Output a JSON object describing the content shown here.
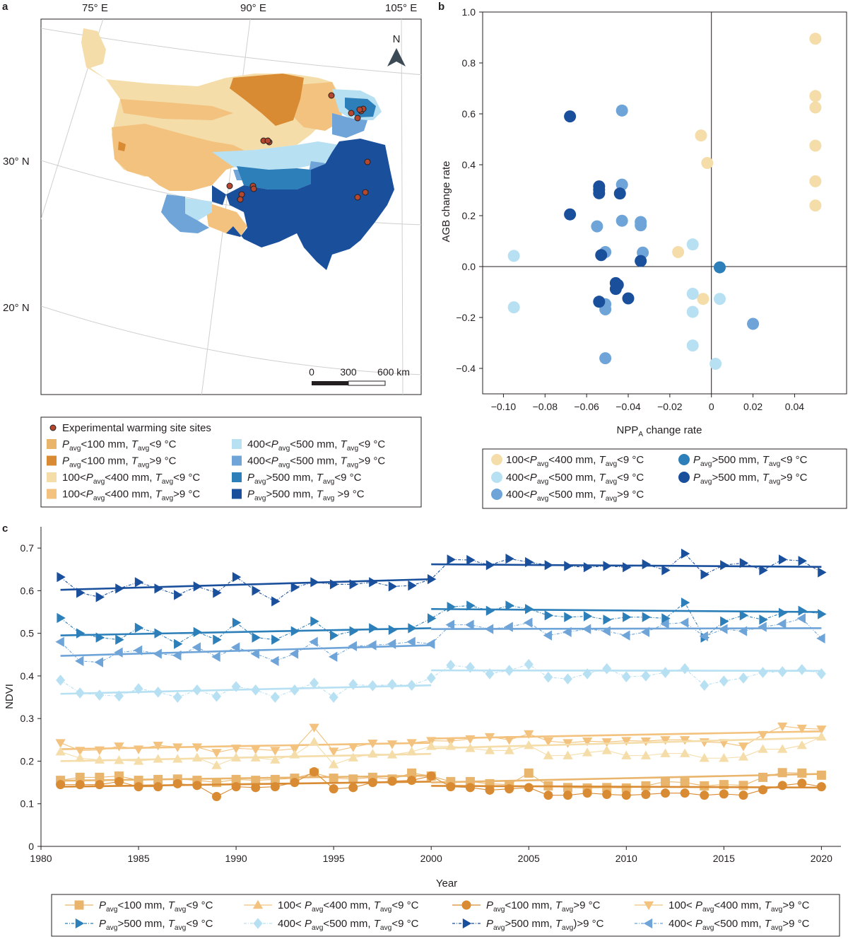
{
  "panel_labels": {
    "a": "a",
    "b": "b",
    "c": "c"
  },
  "colors": {
    "c1": "#e9b56d",
    "c2": "#d98b33",
    "c3": "#f5ddaa",
    "c4": "#f2c27e",
    "c5": "#b7e0f3",
    "c6": "#6ea4d8",
    "c7": "#2c7fb8",
    "c8": "#1a4f9c",
    "site": "#b5472f"
  },
  "map": {
    "lon_labels": [
      "75° E",
      "90° E",
      "105° E"
    ],
    "lat_labels": [
      "30° N",
      "20° N"
    ],
    "north_label": "N",
    "scale": {
      "t0": "0",
      "t1": "300",
      "t2": "600 km"
    }
  },
  "legend_a": {
    "site_label": "Experimental warming site sites",
    "items": [
      {
        "key": "c1",
        "pre": "",
        "mid": "<100 mm,",
        "rel": "<9 °C"
      },
      {
        "key": "c2",
        "pre": "",
        "mid": "<100 mm,",
        "rel": ">9 °C"
      },
      {
        "key": "c3",
        "pre": "100<",
        "mid": "<400 mm,",
        "rel": "<9 °C"
      },
      {
        "key": "c4",
        "pre": "100<",
        "mid": "<400 mm,",
        "rel": ">9 °C"
      },
      {
        "key": "c5",
        "pre": "400<",
        "mid": "<500 mm,",
        "rel": "<9 °C"
      },
      {
        "key": "c6",
        "pre": "400<",
        "mid": "<500 mm,",
        "rel": ">9 °C"
      },
      {
        "key": "c7",
        "pre": "",
        "mid": ">500 mm,",
        "rel": "<9 °C"
      },
      {
        "key": "c8",
        "pre": "",
        "mid": ">500 mm,",
        "rel": " >9 °C"
      }
    ]
  },
  "legend_b": {
    "items": [
      {
        "key": "c3",
        "pre": "100<",
        "mid": "<400 mm,",
        "rel": "<9 °C"
      },
      {
        "key": "c5",
        "pre": "400<",
        "mid": "<500 mm,",
        "rel": "<9 °C"
      },
      {
        "key": "c6",
        "pre": "400<",
        "mid": "<500 mm,",
        "rel": ">9 °C"
      },
      {
        "key": "c7",
        "pre": "",
        "mid": ">500 mm,",
        "rel": "<9 °C"
      },
      {
        "key": "c8",
        "pre": "",
        "mid": ">500 mm,",
        "rel": ">9 °C"
      }
    ]
  },
  "legend_c": {
    "items": [
      {
        "key": "c1",
        "marker": "square",
        "pre": "",
        "mid": "<100 mm,",
        "rel": "<9 °C"
      },
      {
        "key": "c4",
        "marker": "tri-up",
        "pre": "100< ",
        "mid": "<400 mm,",
        "rel": "<9 °C"
      },
      {
        "key": "c2",
        "marker": "circle",
        "pre": "",
        "mid": "<100 mm,",
        "rel": ">9 °C"
      },
      {
        "key": "c4",
        "marker": "tri-down",
        "pre": "100< ",
        "mid": "<400 mm,",
        "rel": ">9 °C"
      },
      {
        "key": "c7",
        "marker": "tri-right",
        "pre": "",
        "mid": ">500 mm,",
        "rel": "<9 °C"
      },
      {
        "key": "c5",
        "marker": "diamond",
        "pre": "400< ",
        "mid": "<500 mm,",
        "rel": "<9 °C"
      },
      {
        "key": "c8",
        "marker": "tri-right",
        "pre": "",
        "mid": ">500 mm,",
        "rel": ")>9 °C"
      },
      {
        "key": "c6",
        "marker": "tri-left",
        "pre": "400< ",
        "mid": "<500 mm,",
        "rel": ">9 °C"
      }
    ]
  },
  "chart_data": [
    {
      "type": "scatter",
      "panel": "b",
      "xlabel": "NPP",
      "xlabel_sub": "A",
      "xlabel_rest": " change rate",
      "ylabel": "AGB change rate",
      "xlim": [
        -0.11,
        0.065
      ],
      "ylim": [
        -0.5,
        1.0
      ],
      "xticks": [
        -0.1,
        -0.08,
        -0.06,
        -0.04,
        -0.02,
        0,
        0.02,
        0.04
      ],
      "xtick_labels": [
        "−0.10",
        "−0.08",
        "−0.06",
        "−0.04",
        "−0.02",
        "0",
        "0.02",
        "0.04"
      ],
      "yticks": [
        -0.4,
        -0.2,
        0.0,
        0.2,
        0.4,
        0.6,
        0.8,
        1.0
      ],
      "ytick_labels": [
        "−0.4",
        "−0.2",
        "0.0",
        "0.2",
        "0.4",
        "0.6",
        "0.8",
        "1.0"
      ],
      "series": [
        {
          "key": "c3",
          "points": [
            [
              0.05,
              0.895
            ],
            [
              0.05,
              0.67
            ],
            [
              0.05,
              0.625
            ],
            [
              0.05,
              0.475
            ],
            [
              0.05,
              0.335
            ],
            [
              0.05,
              0.24
            ],
            [
              -0.005,
              0.515
            ],
            [
              -0.002,
              0.407
            ],
            [
              -0.016,
              0.057
            ],
            [
              -0.004,
              -0.127
            ]
          ]
        },
        {
          "key": "c5",
          "points": [
            [
              -0.095,
              0.042
            ],
            [
              -0.095,
              -0.16
            ],
            [
              -0.009,
              0.087
            ],
            [
              -0.009,
              -0.107
            ],
            [
              -0.009,
              -0.178
            ],
            [
              -0.009,
              -0.31
            ],
            [
              0.004,
              -0.127
            ],
            [
              0.002,
              -0.382
            ]
          ]
        },
        {
          "key": "c6",
          "points": [
            [
              -0.043,
              0.613
            ],
            [
              -0.043,
              0.322
            ],
            [
              -0.043,
              0.18
            ],
            [
              -0.034,
              0.175
            ],
            [
              -0.034,
              0.162
            ],
            [
              -0.055,
              0.158
            ],
            [
              -0.051,
              0.057
            ],
            [
              -0.033,
              0.055
            ],
            [
              -0.051,
              -0.148
            ],
            [
              -0.051,
              -0.168
            ],
            [
              -0.051,
              -0.36
            ],
            [
              0.02,
              -0.225
            ]
          ]
        },
        {
          "key": "c7",
          "points": [
            [
              0.004,
              -0.003
            ]
          ]
        },
        {
          "key": "c8",
          "points": [
            [
              -0.068,
              0.59
            ],
            [
              -0.054,
              0.315
            ],
            [
              -0.054,
              0.302
            ],
            [
              -0.054,
              0.288
            ],
            [
              -0.044,
              0.287
            ],
            [
              -0.068,
              0.205
            ],
            [
              -0.053,
              0.045
            ],
            [
              -0.034,
              0.022
            ],
            [
              -0.046,
              -0.065
            ],
            [
              -0.045,
              -0.072
            ],
            [
              -0.046,
              -0.088
            ],
            [
              -0.04,
              -0.125
            ],
            [
              -0.054,
              -0.138
            ]
          ]
        }
      ]
    },
    {
      "type": "line",
      "panel": "c",
      "xlabel": "Year",
      "ylabel": "NDVI",
      "xlim": [
        1980,
        2021
      ],
      "ylim": [
        0,
        0.75
      ],
      "xticks": [
        1980,
        1985,
        1990,
        1995,
        2000,
        2005,
        2010,
        2015,
        2020
      ],
      "yticks": [
        0,
        0.1,
        0.2,
        0.3,
        0.4,
        0.5,
        0.6,
        0.7
      ],
      "ytick_labels": [
        "0",
        "0.1",
        "0.2",
        "0.3",
        "0.4",
        "0.5",
        "0.6",
        "0.7"
      ],
      "x": [
        1981,
        1982,
        1983,
        1984,
        1985,
        1986,
        1987,
        1988,
        1989,
        1990,
        1991,
        1992,
        1993,
        1994,
        1995,
        1996,
        1997,
        1998,
        1999,
        2000,
        2001,
        2002,
        2003,
        2004,
        2005,
        2006,
        2007,
        2008,
        2009,
        2010,
        2011,
        2012,
        2013,
        2014,
        2015,
        2016,
        2017,
        2018,
        2019,
        2020
      ],
      "series": [
        {
          "key": "c8",
          "marker": "tri-right",
          "dashed": true,
          "values": [
            0.632,
            0.595,
            0.585,
            0.605,
            0.62,
            0.605,
            0.59,
            0.61,
            0.595,
            0.632,
            0.6,
            0.575,
            0.608,
            0.62,
            0.615,
            0.615,
            0.62,
            0.61,
            0.612,
            0.627,
            0.673,
            0.672,
            0.66,
            0.675,
            0.667,
            0.66,
            0.658,
            0.655,
            0.658,
            0.655,
            0.662,
            0.648,
            0.687,
            0.638,
            0.66,
            0.665,
            0.648,
            0.673,
            0.67,
            0.643
          ],
          "trend1": [
            0.602,
            0.627
          ],
          "trend2": [
            0.662,
            0.656
          ]
        },
        {
          "key": "c7",
          "marker": "tri-right",
          "dashed": true,
          "values": [
            0.536,
            0.5,
            0.49,
            0.485,
            0.513,
            0.5,
            0.475,
            0.503,
            0.485,
            0.525,
            0.49,
            0.485,
            0.505,
            0.528,
            0.495,
            0.505,
            0.512,
            0.508,
            0.512,
            0.535,
            0.562,
            0.565,
            0.553,
            0.565,
            0.557,
            0.542,
            0.538,
            0.54,
            0.532,
            0.538,
            0.538,
            0.535,
            0.572,
            0.49,
            0.528,
            0.542,
            0.532,
            0.548,
            0.553,
            0.545
          ],
          "trend1": [
            0.495,
            0.512
          ],
          "trend2": [
            0.557,
            0.55
          ]
        },
        {
          "key": "c6",
          "marker": "tri-left",
          "dashed": true,
          "values": [
            0.48,
            0.435,
            0.432,
            0.455,
            0.46,
            0.452,
            0.448,
            0.467,
            0.445,
            0.467,
            0.452,
            0.435,
            0.452,
            0.48,
            0.445,
            0.47,
            0.472,
            0.475,
            0.48,
            0.475,
            0.52,
            0.52,
            0.51,
            0.515,
            0.525,
            0.495,
            0.503,
            0.51,
            0.505,
            0.495,
            0.503,
            0.522,
            0.525,
            0.493,
            0.51,
            0.505,
            0.515,
            0.522,
            0.535,
            0.488
          ],
          "trend1": [
            0.447,
            0.472
          ],
          "trend2": [
            0.51,
            0.512
          ]
        },
        {
          "key": "c5",
          "marker": "diamond",
          "dashed": true,
          "values": [
            0.39,
            0.36,
            0.355,
            0.353,
            0.37,
            0.362,
            0.35,
            0.367,
            0.352,
            0.375,
            0.367,
            0.35,
            0.367,
            0.383,
            0.35,
            0.38,
            0.377,
            0.38,
            0.378,
            0.395,
            0.425,
            0.42,
            0.405,
            0.413,
            0.427,
            0.397,
            0.393,
            0.405,
            0.417,
            0.398,
            0.4,
            0.408,
            0.417,
            0.378,
            0.388,
            0.395,
            0.408,
            0.41,
            0.415,
            0.405
          ],
          "trend1": [
            0.358,
            0.378
          ],
          "trend2": [
            0.413,
            0.412
          ]
        },
        {
          "key": "c4",
          "marker": "tri-down",
          "dashed": false,
          "values": [
            0.243,
            0.225,
            0.226,
            0.235,
            0.228,
            0.237,
            0.233,
            0.233,
            0.22,
            0.23,
            0.228,
            0.225,
            0.229,
            0.279,
            0.223,
            0.233,
            0.242,
            0.24,
            0.243,
            0.248,
            0.247,
            0.252,
            0.257,
            0.25,
            0.264,
            0.247,
            0.243,
            0.247,
            0.245,
            0.248,
            0.247,
            0.25,
            0.25,
            0.245,
            0.243,
            0.235,
            0.262,
            0.282,
            0.277,
            0.275
          ],
          "trend1": [
            0.228,
            0.243
          ],
          "trend2": [
            0.253,
            0.27
          ]
        },
        {
          "key": "c3",
          "marker": "tri-up",
          "dashed": false,
          "values": [
            0.222,
            0.207,
            0.203,
            0.202,
            0.2,
            0.205,
            0.205,
            0.208,
            0.19,
            0.208,
            0.208,
            0.203,
            0.215,
            0.245,
            0.192,
            0.208,
            0.217,
            0.215,
            0.222,
            0.235,
            0.235,
            0.23,
            0.225,
            0.225,
            0.237,
            0.213,
            0.213,
            0.22,
            0.225,
            0.213,
            0.213,
            0.218,
            0.218,
            0.207,
            0.207,
            0.21,
            0.228,
            0.228,
            0.237,
            0.257
          ],
          "trend1": [
            0.2,
            0.217
          ],
          "trend2": [
            0.23,
            0.255
          ]
        },
        {
          "key": "c1",
          "marker": "square",
          "dashed": false,
          "values": [
            0.155,
            0.162,
            0.162,
            0.165,
            0.155,
            0.157,
            0.158,
            0.155,
            0.15,
            0.157,
            0.155,
            0.157,
            0.16,
            0.172,
            0.16,
            0.158,
            0.162,
            0.158,
            0.172,
            0.165,
            0.152,
            0.152,
            0.147,
            0.145,
            0.172,
            0.142,
            0.138,
            0.137,
            0.138,
            0.137,
            0.142,
            0.152,
            0.15,
            0.142,
            0.145,
            0.143,
            0.162,
            0.173,
            0.172,
            0.167
          ],
          "trend1": [
            0.154,
            0.166
          ],
          "trend2": [
            0.15,
            0.17
          ]
        },
        {
          "key": "c2",
          "marker": "circle",
          "dashed": false,
          "values": [
            0.145,
            0.145,
            0.145,
            0.152,
            0.14,
            0.14,
            0.147,
            0.143,
            0.117,
            0.14,
            0.138,
            0.14,
            0.15,
            0.175,
            0.135,
            0.138,
            0.15,
            0.153,
            0.155,
            0.165,
            0.14,
            0.138,
            0.132,
            0.135,
            0.138,
            0.12,
            0.12,
            0.125,
            0.122,
            0.12,
            0.122,
            0.125,
            0.125,
            0.12,
            0.123,
            0.12,
            0.133,
            0.143,
            0.148,
            0.14
          ],
          "trend1": [
            0.14,
            0.152
          ],
          "trend2": [
            0.142,
            0.138
          ]
        }
      ]
    }
  ]
}
